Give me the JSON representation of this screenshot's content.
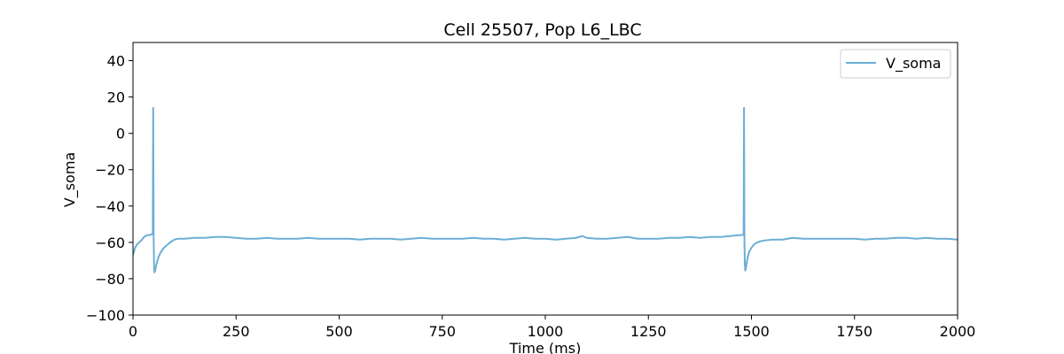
{
  "chart_data": {
    "type": "line",
    "title": "Cell 25507, Pop L6_LBC",
    "xlabel": "Time (ms)",
    "ylabel": "V_soma",
    "xlim": [
      0,
      2000
    ],
    "ylim": [
      -100,
      50
    ],
    "xticks": [
      0,
      250,
      500,
      750,
      1000,
      1250,
      1500,
      1750,
      2000
    ],
    "yticks": [
      -100,
      -80,
      -60,
      -40,
      -20,
      0,
      20,
      40
    ],
    "grid": false,
    "legend": "top-right",
    "series": [
      {
        "name": "V_soma",
        "color": "#6baed6",
        "x": [
          0,
          5,
          10,
          15,
          20,
          25,
          30,
          35,
          40,
          45,
          48,
          49,
          50,
          51,
          52,
          53,
          55,
          58,
          62,
          66,
          70,
          75,
          80,
          85,
          90,
          100,
          110,
          125,
          150,
          175,
          200,
          225,
          250,
          275,
          300,
          325,
          350,
          375,
          400,
          425,
          450,
          475,
          500,
          525,
          550,
          575,
          600,
          625,
          650,
          675,
          700,
          725,
          750,
          775,
          800,
          825,
          850,
          875,
          900,
          925,
          950,
          975,
          1000,
          1025,
          1050,
          1075,
          1090,
          1100,
          1125,
          1150,
          1175,
          1200,
          1225,
          1250,
          1275,
          1300,
          1325,
          1350,
          1375,
          1400,
          1425,
          1450,
          1470,
          1478,
          1481,
          1482,
          1483,
          1484,
          1485,
          1486,
          1488,
          1491,
          1495,
          1500,
          1505,
          1510,
          1520,
          1530,
          1550,
          1575,
          1600,
          1625,
          1650,
          1675,
          1700,
          1725,
          1750,
          1775,
          1800,
          1825,
          1850,
          1875,
          1900,
          1925,
          1950,
          1975,
          2000
        ],
        "values": [
          -67,
          -63,
          -61,
          -60,
          -59,
          -57.5,
          -56.5,
          -56,
          -56,
          -55.5,
          -55.5,
          14,
          -55,
          -72,
          -76.5,
          -76,
          -74,
          -71,
          -68,
          -66,
          -64.5,
          -63,
          -62,
          -61,
          -60,
          -58.5,
          -58,
          -58,
          -57.5,
          -57.5,
          -57,
          -57,
          -57.5,
          -58,
          -58,
          -57.5,
          -58,
          -58,
          -58,
          -57.5,
          -58,
          -58,
          -58,
          -58,
          -58.5,
          -58,
          -58,
          -58,
          -58.5,
          -58,
          -57.5,
          -58,
          -58,
          -58,
          -58,
          -57.5,
          -58,
          -58,
          -58.5,
          -58,
          -57.5,
          -58,
          -58,
          -58.5,
          -58,
          -57.5,
          -56.5,
          -57.5,
          -58,
          -58,
          -57.5,
          -57,
          -58,
          -58,
          -58,
          -57.5,
          -57.5,
          -57,
          -57.5,
          -57,
          -57,
          -56.5,
          -56,
          -56,
          -55.5,
          14,
          -60,
          -72,
          -75.5,
          -75,
          -72,
          -68,
          -65,
          -63,
          -61.5,
          -60.5,
          -59.5,
          -59,
          -58.5,
          -58.5,
          -57.5,
          -58,
          -58,
          -58,
          -58,
          -58,
          -58,
          -58.5,
          -58,
          -58,
          -57.5,
          -57.5,
          -58,
          -57.5,
          -58,
          -58,
          -58.5
        ]
      }
    ]
  }
}
